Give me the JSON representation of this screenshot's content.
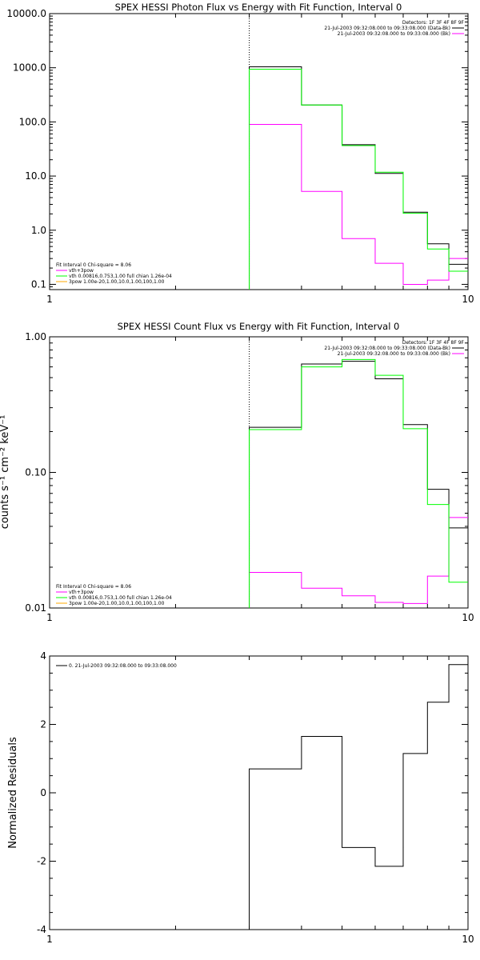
{
  "chart_data": [
    {
      "type": "line",
      "title": "SPEX HESSI Photon Flux vs Energy with Fit Function, Interval 0",
      "ylabel": "",
      "x_scale": "log",
      "y_scale": "log",
      "xlim": [
        1,
        10
      ],
      "ylim": [
        0.08,
        10000
      ],
      "x_ticks": [
        {
          "v": 1,
          "label": "1"
        },
        {
          "v": 10,
          "label": "10"
        }
      ],
      "y_ticks": [
        {
          "v": 10000,
          "label": "10000.0"
        },
        {
          "v": 1000,
          "label": "1000.0"
        },
        {
          "v": 100,
          "label": "100.0"
        },
        {
          "v": 10,
          "label": "10.0"
        },
        {
          "v": 1,
          "label": "1.0"
        },
        {
          "v": 0.1,
          "label": "0.1"
        }
      ],
      "vline_x": 3.0,
      "bin_edges": [
        3.0,
        4.0,
        5.0,
        6.0,
        7.0,
        8.0,
        9.0,
        10.0
      ],
      "series": [
        {
          "name": "",
          "color": "#000000",
          "values": [
            1040,
            205,
            38,
            11.2,
            2.15,
            0.56,
            0.235
          ]
        },
        {
          "name": "vth+3pow",
          "color": "#ff00ff",
          "values": [
            90,
            5.2,
            0.7,
            0.245,
            0.1,
            0.12,
            0.3
          ]
        },
        {
          "name": "vth 0.00816,0.753,1.00  full chian 1.26e-04",
          "color": "#00ff00",
          "values": [
            940,
            205,
            36.5,
            11.8,
            2.05,
            0.45,
            0.175
          ]
        },
        {
          "name": "3pow 1.00e-20,1.00,10.0,1.00,100,1.00",
          "color": "#ffaa00",
          "values": [
            0,
            0,
            0,
            0,
            0,
            0,
            0
          ]
        }
      ],
      "legend_top": {
        "header": "Detectors: 1F 3F 4F 8F 9F",
        "entries": [
          {
            "label": "21-Jul-2003 09:32:08.000 to 09:33:08.000 (Data-Bk)",
            "color": "#000000"
          },
          {
            "label": "21-Jul-2003 09:32:08.000 to 09:33:08.000 (Bk)",
            "color": "#ff00ff"
          }
        ]
      },
      "legend_bottom": {
        "header": "Fit Interval 0   Chi-square = 8.06",
        "entries": [
          {
            "label": "vth+3pow",
            "color": "#ff00ff"
          },
          {
            "label": "vth 0.00816,0.753,1.00  full chian 1.26e-04",
            "color": "#00ff00"
          },
          {
            "label": "3pow 1.00e-20,1.00,10.0,1.00,100,1.00",
            "color": "#ffaa00"
          }
        ]
      }
    },
    {
      "type": "line",
      "title": "SPEX HESSI Count Flux vs Energy with Fit Function, Interval 0",
      "ylabel": "counts s⁻¹ cm⁻² keV⁻¹",
      "x_scale": "log",
      "y_scale": "log",
      "xlim": [
        1,
        10
      ],
      "ylim": [
        0.01,
        1.0
      ],
      "x_ticks": [
        {
          "v": 1,
          "label": "1"
        },
        {
          "v": 10,
          "label": "10"
        }
      ],
      "y_ticks": [
        {
          "v": 1.0,
          "label": "1.00"
        },
        {
          "v": 0.1,
          "label": "0.10"
        },
        {
          "v": 0.01,
          "label": "0.01"
        }
      ],
      "vline_x": 3.0,
      "bin_edges": [
        3.0,
        4.0,
        5.0,
        6.0,
        7.0,
        8.0,
        9.0,
        10.0
      ],
      "series": [
        {
          "name": "",
          "color": "#000000",
          "values": [
            0.215,
            0.63,
            0.66,
            0.49,
            0.225,
            0.075,
            0.039
          ]
        },
        {
          "name": "vth+3pow",
          "color": "#ff00ff",
          "values": [
            0.0183,
            0.014,
            0.0123,
            0.011,
            0.0108,
            0.0172,
            0.0465
          ]
        },
        {
          "name": "vth 0.00816,0.753,1.00  full chian 1.26e-04",
          "color": "#00ff00",
          "values": [
            0.207,
            0.6,
            0.68,
            0.52,
            0.21,
            0.058,
            0.0155
          ]
        },
        {
          "name": "3pow 1.00e-20,1.00,10.0,1.00,100,1.00",
          "color": "#ffaa00",
          "values": [
            0,
            0,
            0,
            0,
            0,
            0,
            0
          ]
        }
      ],
      "legend_top": {
        "header": "Detectors: 1F 3F 4F 8F 9F",
        "entries": [
          {
            "label": "21-Jul-2003 09:32:08.000 to 09:33:08.000 (Data-Bk)",
            "color": "#000000"
          },
          {
            "label": "21-Jul-2003 09:32:08.000 to 09:33:08.000 (Bk)",
            "color": "#ff00ff"
          }
        ]
      },
      "legend_bottom": {
        "header": "Fit Interval 0   Chi-square = 8.06",
        "entries": [
          {
            "label": "vth+3pow",
            "color": "#ff00ff"
          },
          {
            "label": "vth 0.00816,0.753,1.00  full chian 1.26e-04",
            "color": "#00ff00"
          },
          {
            "label": "3pow 1.00e-20,1.00,10.0,1.00,100,1.00",
            "color": "#ffaa00"
          }
        ]
      }
    },
    {
      "type": "line",
      "title": "",
      "ylabel": "Normalized Residuals",
      "x_scale": "log",
      "y_scale": "linear",
      "xlim": [
        1,
        10
      ],
      "ylim": [
        -4,
        4
      ],
      "x_ticks": [
        {
          "v": 1,
          "label": "1"
        },
        {
          "v": 10,
          "label": "10"
        }
      ],
      "y_ticks": [
        {
          "v": 4,
          "label": "4"
        },
        {
          "v": 2,
          "label": "2"
        },
        {
          "v": 0,
          "label": "0"
        },
        {
          "v": -2,
          "label": "-2"
        },
        {
          "v": -4,
          "label": "-4"
        }
      ],
      "bin_edges": [
        3.0,
        4.0,
        5.0,
        6.0,
        7.0,
        8.0,
        9.0,
        10.0
      ],
      "series": [
        {
          "name": "0. 21-Jul-2003 09:32:08.000 to 09:33:08.000",
          "color": "#000000",
          "values": [
            0.7,
            1.65,
            -1.6,
            -2.15,
            1.15,
            2.65,
            3.75
          ]
        }
      ],
      "legend_top": {
        "header": "",
        "entries": [
          {
            "label": "0. 21-Jul-2003 09:32:08.000 to 09:33:08.000",
            "color": "#000000"
          }
        ]
      }
    }
  ]
}
